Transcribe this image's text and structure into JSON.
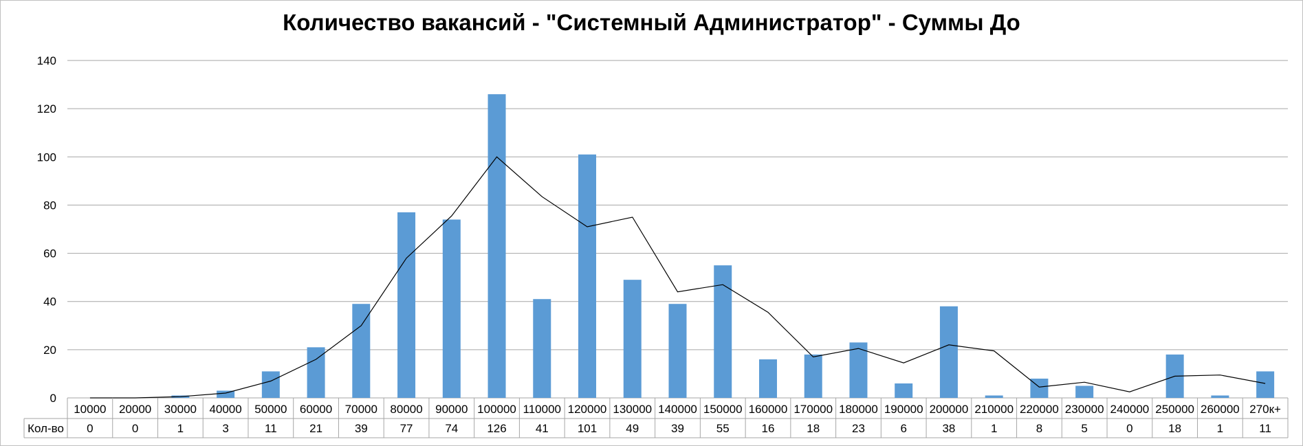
{
  "chart_data": {
    "type": "bar",
    "title": "Количество вакансий - \"Системный Администратор\" - Суммы До",
    "xlabel": "",
    "ylabel": "",
    "ylim": [
      0,
      140
    ],
    "yticks": [
      0,
      20,
      40,
      60,
      80,
      100,
      120,
      140
    ],
    "grid": true,
    "legend": "none",
    "categories": [
      "10000",
      "20000",
      "30000",
      "40000",
      "50000",
      "60000",
      "70000",
      "80000",
      "90000",
      "100000",
      "110000",
      "120000",
      "130000",
      "140000",
      "150000",
      "160000",
      "170000",
      "180000",
      "190000",
      "200000",
      "210000",
      "220000",
      "230000",
      "240000",
      "250000",
      "260000",
      "270к+"
    ],
    "series": [
      {
        "name": "Кол-во",
        "values": [
          0,
          0,
          1,
          3,
          11,
          21,
          39,
          77,
          74,
          126,
          41,
          101,
          49,
          39,
          55,
          16,
          18,
          23,
          6,
          38,
          1,
          8,
          5,
          0,
          18,
          1,
          11
        ],
        "color": "#5b9bd5"
      }
    ],
    "trendline": {
      "type": "moving-average",
      "color": "#000000",
      "values": [
        0,
        0,
        0.5,
        2,
        7,
        16,
        30,
        58,
        75.5,
        100,
        83.5,
        71,
        75,
        44,
        47,
        35.5,
        17,
        20.5,
        14.5,
        22,
        19.5,
        4.5,
        6.5,
        2.5,
        9,
        9.5,
        6
      ]
    },
    "data_table_row_label": "Кол-во"
  }
}
